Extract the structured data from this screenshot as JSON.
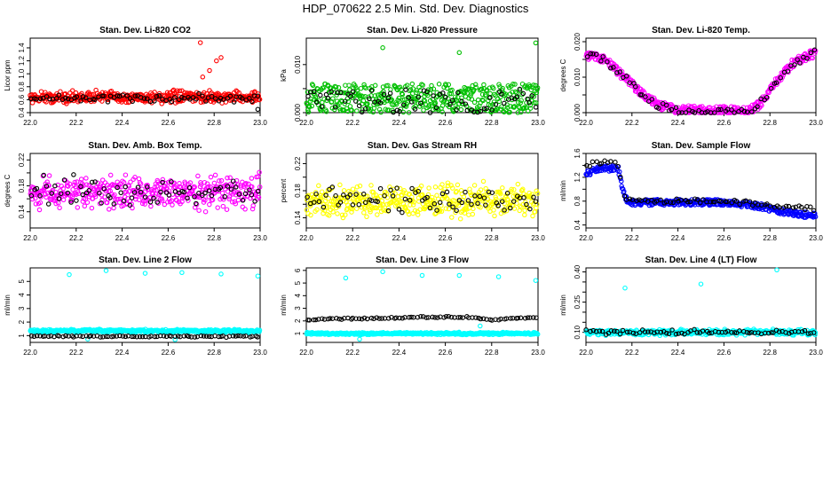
{
  "page": {
    "title": "HDP_070622  2.5 Min. Std. Dev. Diagnostics"
  },
  "chart_data": [
    {
      "type": "scatter",
      "title": "Stan. Dev. Li-820 CO2",
      "ylabel": "Licor ppm",
      "xlim": [
        22.0,
        23.0
      ],
      "ylim": [
        0.4,
        1.55
      ],
      "xticks": [
        "22.0",
        "22.2",
        "22.4",
        "22.6",
        "22.8",
        "23.0"
      ],
      "yticks": [
        0.4,
        0.6,
        0.8,
        1.0,
        1.2,
        1.4
      ],
      "ytick_labels": [
        "0.4",
        "0.6",
        "0.8",
        "1.0",
        "1.2",
        "1.4"
      ],
      "series": [
        {
          "name": "primary",
          "color": "#ff0000",
          "count": 420,
          "pattern": "band",
          "base": 0.64,
          "spread": 0.08,
          "outliers": [
            [
              22.75,
              0.95
            ],
            [
              22.78,
              1.05
            ],
            [
              22.81,
              1.2
            ],
            [
              22.83,
              1.25
            ],
            [
              22.74,
              1.48
            ]
          ]
        },
        {
          "name": "reference",
          "color": "#000000",
          "count": 75,
          "pattern": "band",
          "base": 0.62,
          "spread": 0.05,
          "outliers": [
            [
              22.99,
              0.45
            ]
          ]
        }
      ]
    },
    {
      "type": "scatter",
      "title": "Stan. Dev. Li-820 Pressure",
      "ylabel": "kPa",
      "xlim": [
        22.0,
        23.0
      ],
      "ylim": [
        0.0,
        0.0155
      ],
      "xticks": [
        "22.0",
        "22.2",
        "22.4",
        "22.6",
        "22.8",
        "23.0"
      ],
      "yticks": [
        0.0,
        0.005,
        0.01
      ],
      "ytick_labels": [
        "0.000",
        "",
        "0.010"
      ],
      "series": [
        {
          "name": "primary",
          "color": "#00c000",
          "count": 430,
          "pattern": "uniform",
          "min": 0.0,
          "max": 0.006,
          "outliers": [
            [
              22.33,
              0.0135
            ],
            [
              22.66,
              0.0125
            ],
            [
              22.99,
              0.0145
            ]
          ]
        },
        {
          "name": "reference",
          "color": "#000000",
          "count": 75,
          "pattern": "uniform",
          "min": 0.0,
          "max": 0.005
        }
      ]
    },
    {
      "type": "scatter",
      "title": "Stan. Dev. Li-820 Temp.",
      "ylabel": "degrees C",
      "xlim": [
        22.0,
        23.0
      ],
      "ylim": [
        0.0,
        0.021
      ],
      "xticks": [
        "22.0",
        "22.2",
        "22.4",
        "22.6",
        "22.8",
        "23.0"
      ],
      "yticks": [
        0.0,
        0.005,
        0.01,
        0.015,
        0.02
      ],
      "ytick_labels": [
        "0.000",
        "",
        "0.010",
        "",
        "0.020"
      ],
      "series": [
        {
          "name": "primary",
          "color": "#ff00ff",
          "count": 380,
          "pattern": "path",
          "spread": 0.0012,
          "path": [
            [
              22.0,
              0.016
            ],
            [
              22.08,
              0.015
            ],
            [
              22.15,
              0.011
            ],
            [
              22.25,
              0.005
            ],
            [
              22.32,
              0.002
            ],
            [
              22.4,
              0.0008
            ],
            [
              22.7,
              0.0005
            ],
            [
              22.75,
              0.002
            ],
            [
              22.82,
              0.008
            ],
            [
              22.9,
              0.014
            ],
            [
              23.0,
              0.017
            ]
          ]
        },
        {
          "name": "reference",
          "color": "#000000",
          "count": 70,
          "pattern": "path",
          "spread": 0.001,
          "path": [
            [
              22.0,
              0.016
            ],
            [
              22.08,
              0.015
            ],
            [
              22.15,
              0.011
            ],
            [
              22.25,
              0.005
            ],
            [
              22.32,
              0.002
            ],
            [
              22.4,
              0.0005
            ],
            [
              22.7,
              0.0003
            ],
            [
              22.75,
              0.002
            ],
            [
              22.82,
              0.008
            ],
            [
              22.9,
              0.014
            ],
            [
              23.0,
              0.017
            ]
          ]
        }
      ]
    },
    {
      "type": "scatter",
      "title": "Stan. Dev. Amb. Box Temp.",
      "ylabel": "degrees C",
      "xlim": [
        22.0,
        23.0
      ],
      "ylim": [
        0.115,
        0.23
      ],
      "xticks": [
        "22.0",
        "22.2",
        "22.4",
        "22.6",
        "22.8",
        "23.0"
      ],
      "yticks": [
        0.14,
        0.16,
        0.18,
        0.2,
        0.22
      ],
      "ytick_labels": [
        "0.14",
        "",
        "0.18",
        "",
        "0.22"
      ],
      "series": [
        {
          "name": "primary",
          "color": "#ff00ff",
          "count": 420,
          "pattern": "band",
          "base": 0.17,
          "spread": 0.022
        },
        {
          "name": "reference",
          "color": "#000000",
          "count": 75,
          "pattern": "band",
          "base": 0.17,
          "spread": 0.02
        }
      ]
    },
    {
      "type": "scatter",
      "title": "Stan. Dev. Gas Stream RH",
      "ylabel": "percent",
      "xlim": [
        22.0,
        23.0
      ],
      "ylim": [
        0.125,
        0.235
      ],
      "xticks": [
        "22.0",
        "22.2",
        "22.4",
        "22.6",
        "22.8",
        "23.0"
      ],
      "yticks": [
        0.14,
        0.16,
        0.18,
        0.2,
        0.22
      ],
      "ytick_labels": [
        "0.14",
        "",
        "0.18",
        "",
        "0.22"
      ],
      "series": [
        {
          "name": "primary",
          "color": "#ffff00",
          "count": 420,
          "pattern": "band",
          "base": 0.165,
          "spread": 0.02
        },
        {
          "name": "reference",
          "color": "#000000",
          "count": 75,
          "pattern": "band",
          "base": 0.165,
          "spread": 0.017
        }
      ]
    },
    {
      "type": "scatter",
      "title": "Stan. Dev. Sample Flow",
      "ylabel": "ml/min",
      "xlim": [
        22.0,
        23.0
      ],
      "ylim": [
        0.35,
        1.6
      ],
      "xticks": [
        "22.0",
        "22.2",
        "22.4",
        "22.6",
        "22.8",
        "23.0"
      ],
      "yticks": [
        0.4,
        0.6,
        0.8,
        1.0,
        1.2,
        1.4,
        1.6
      ],
      "ytick_labels": [
        "0.4",
        "",
        "0.8",
        "",
        "1.2",
        "",
        "1.6"
      ],
      "series": [
        {
          "name": "primary",
          "color": "#0000ff",
          "count": 400,
          "pattern": "path",
          "spread": 0.05,
          "path": [
            [
              22.0,
              1.25
            ],
            [
              22.06,
              1.35
            ],
            [
              22.14,
              1.35
            ],
            [
              22.17,
              0.85
            ],
            [
              22.2,
              0.78
            ],
            [
              22.6,
              0.78
            ],
            [
              22.75,
              0.72
            ],
            [
              22.85,
              0.62
            ],
            [
              23.0,
              0.55
            ]
          ]
        },
        {
          "name": "reference",
          "color": "#000000",
          "count": 75,
          "pattern": "path",
          "spread": 0.04,
          "path": [
            [
              22.0,
              1.4
            ],
            [
              22.06,
              1.45
            ],
            [
              22.14,
              1.42
            ],
            [
              22.17,
              0.85
            ],
            [
              22.2,
              0.8
            ],
            [
              22.6,
              0.8
            ],
            [
              22.75,
              0.76
            ],
            [
              22.85,
              0.7
            ],
            [
              23.0,
              0.68
            ]
          ]
        }
      ]
    },
    {
      "type": "scatter",
      "title": "Stan. Dev. Line 2 Flow",
      "ylabel": "ml/min",
      "xlim": [
        22.0,
        23.0
      ],
      "ylim": [
        0.5,
        6.0
      ],
      "xticks": [
        "22.0",
        "22.2",
        "22.4",
        "22.6",
        "22.8",
        "23.0"
      ],
      "yticks": [
        1,
        2,
        3,
        4,
        5
      ],
      "ytick_labels": [
        "1",
        "2",
        "3",
        "4",
        "5"
      ],
      "series": [
        {
          "name": "primary",
          "color": "#00ffff",
          "count": 420,
          "pattern": "band",
          "base": 1.35,
          "spread": 0.1,
          "outliers": [
            [
              22.17,
              5.5
            ],
            [
              22.33,
              5.8
            ],
            [
              22.5,
              5.6
            ],
            [
              22.66,
              5.65
            ],
            [
              22.83,
              5.55
            ],
            [
              22.99,
              5.4
            ],
            [
              22.25,
              0.75
            ],
            [
              22.63,
              0.7
            ]
          ]
        },
        {
          "name": "reference",
          "color": "#000000",
          "count": 80,
          "pattern": "band",
          "base": 0.95,
          "spread": 0.05
        }
      ]
    },
    {
      "type": "scatter",
      "title": "Stan. Dev. Line 3 Flow",
      "ylabel": "ml/min",
      "xlim": [
        22.0,
        23.0
      ],
      "ylim": [
        0.3,
        6.2
      ],
      "xticks": [
        "22.0",
        "22.2",
        "22.4",
        "22.6",
        "22.8",
        "23.0"
      ],
      "yticks": [
        1,
        2,
        3,
        4,
        5,
        6
      ],
      "ytick_labels": [
        "1",
        "2",
        "3",
        "4",
        "5",
        "6"
      ],
      "series": [
        {
          "name": "primary",
          "color": "#00ffff",
          "count": 420,
          "pattern": "band",
          "base": 1.0,
          "spread": 0.08,
          "outliers": [
            [
              22.17,
              5.4
            ],
            [
              22.33,
              5.9
            ],
            [
              22.5,
              5.6
            ],
            [
              22.66,
              5.6
            ],
            [
              22.83,
              5.5
            ],
            [
              22.99,
              5.2
            ],
            [
              22.23,
              0.55
            ],
            [
              22.75,
              1.6
            ]
          ]
        },
        {
          "name": "reference",
          "color": "#000000",
          "count": 80,
          "pattern": "path",
          "spread": 0.06,
          "path": [
            [
              22.0,
              2.1
            ],
            [
              22.5,
              2.3
            ],
            [
              22.7,
              2.3
            ],
            [
              22.8,
              2.1
            ],
            [
              23.0,
              2.3
            ]
          ]
        }
      ]
    },
    {
      "type": "scatter",
      "title": "Stan. Dev. Line 4 (LT) Flow",
      "ylabel": "ml/min",
      "xlim": [
        22.0,
        23.0
      ],
      "ylim": [
        0.05,
        0.42
      ],
      "xticks": [
        "22.0",
        "22.2",
        "22.4",
        "22.6",
        "22.8",
        "23.0"
      ],
      "yticks": [
        0.1,
        0.15,
        0.2,
        0.25,
        0.3,
        0.35,
        0.4
      ],
      "ytick_labels": [
        "0.10",
        "",
        "",
        "0.25",
        "",
        "",
        "0.40"
      ],
      "series": [
        {
          "name": "primary",
          "color": "#00ffff",
          "count": 420,
          "pattern": "band",
          "base": 0.1,
          "spread": 0.012,
          "outliers": [
            [
              22.17,
              0.32
            ],
            [
              22.5,
              0.34
            ],
            [
              22.83,
              0.41
            ]
          ]
        },
        {
          "name": "reference",
          "color": "#000000",
          "count": 75,
          "pattern": "band",
          "base": 0.1,
          "spread": 0.01
        }
      ]
    }
  ]
}
